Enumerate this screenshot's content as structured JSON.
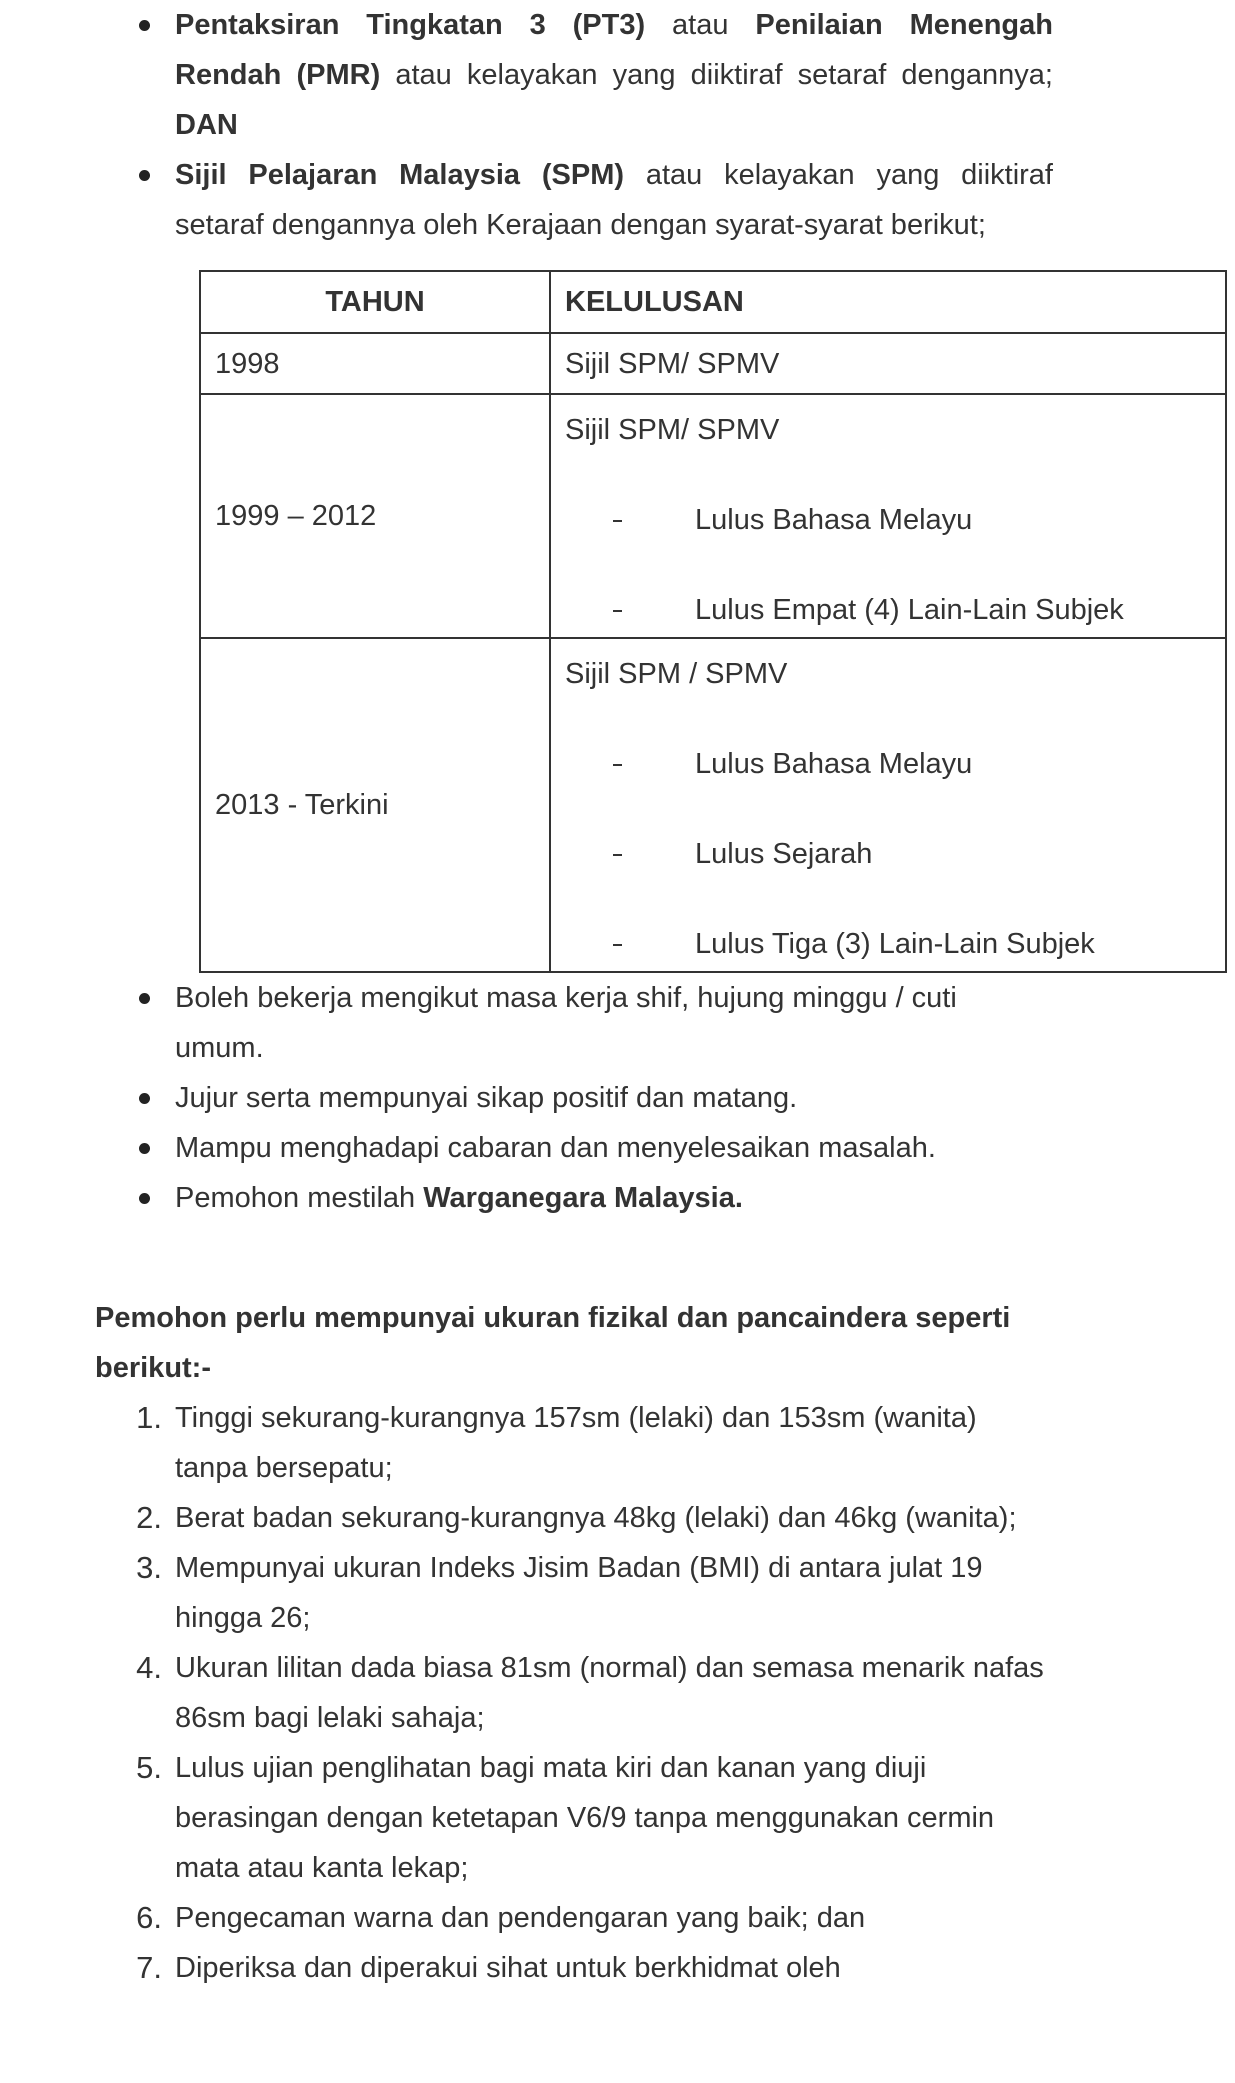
{
  "requirements": {
    "items": [
      [
        "Pentaksiran Tingkatan 3 (PT3)",
        "atau",
        "Penilaian Menengah Rendah (PMR)",
        "atau kelayakan yang diiktiraf setaraf dengannya;",
        "DAN"
      ],
      [
        "Sijil Pelajaran Malaysia (SPM)",
        "atau kelayakan yang diiktiraf setaraf dengannya oleh Kerajaan dengan syarat-syarat berikut;"
      ]
    ]
  },
  "table": {
    "header": [
      "TAHUN",
      "KELULUSAN"
    ],
    "rows": [
      {
        "year": "1998",
        "cert": "Sijil SPM/ SPMV",
        "conditions": []
      },
      {
        "year": "1999 – 2012",
        "cert": "Sijil SPM/ SPMV",
        "conditions": [
          "Lulus Bahasa Melayu",
          "Lulus Empat (4) Lain-Lain Subjek"
        ]
      },
      {
        "year": "2013 - Terkini",
        "cert": "Sijil SPM / SPMV",
        "conditions": [
          "Lulus Bahasa Melayu",
          "Lulus Sejarah",
          "Lulus Tiga (3) Lain-Lain Subjek"
        ]
      }
    ]
  },
  "more_requirements": {
    "items": [
      [
        "Boleh bekerja mengikut masa kerja shif, hujung minggu / cuti umum."
      ],
      [
        "Jujur serta mempunyai sikap positif dan matang."
      ],
      [
        "Mampu menghadapi cabaran dan menyelesaikan masalah."
      ],
      [
        "Pemohon mestilah",
        "Warganegara Malaysia."
      ]
    ]
  },
  "physical": {
    "heading": "Pemohon perlu mempunyai ukuran fizikal dan pancaindera seperti berikut:-",
    "items": [
      {
        "marker": "1.",
        "text": "Tinggi sekurang-kurangnya 157sm (lelaki) dan 153sm (wanita) tanpa bersepatu;"
      },
      {
        "marker": "2.",
        "text": "Berat badan sekurang-kurangnya 48kg (lelaki) dan 46kg (wanita);"
      },
      {
        "marker": "3.",
        "text": "Mempunyai ukuran Indeks Jisim Badan (BMI) di antara julat 19 hingga 26;"
      },
      {
        "marker": "4.",
        "text": "Ukuran lilitan dada biasa 81sm (normal) dan semasa menarik nafas 86sm bagi lelaki sahaja;"
      },
      {
        "marker": "5.",
        "text": "Lulus ujian penglihatan bagi mata kiri dan kanan yang diuji berasingan dengan ketetapan V6/9 tanpa menggunakan cermin mata atau kanta lekap;"
      },
      {
        "marker": "6.",
        "text": "Pengecaman warna dan pendengaran yang baik; dan"
      },
      {
        "marker": "7.",
        "text": "Diperiksa dan diperakui sihat untuk berkhidmat oleh"
      }
    ]
  }
}
